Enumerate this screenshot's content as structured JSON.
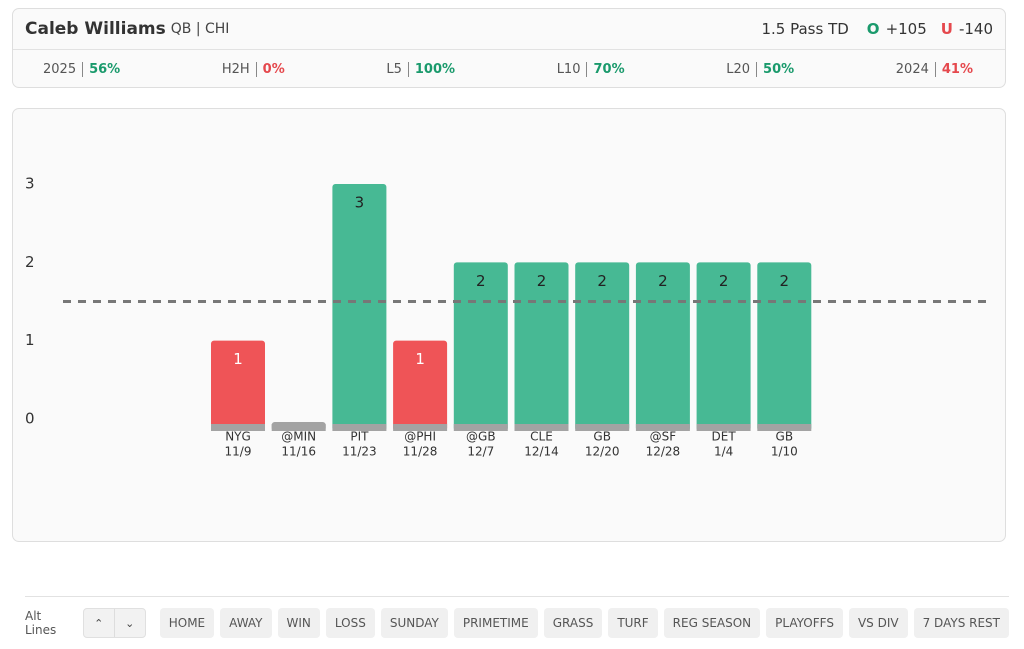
{
  "header": {
    "player": "Caleb Williams",
    "position": "QB | CHI",
    "prop": "1.5 Pass TD",
    "over_mark": "O",
    "over_odds": "+105",
    "under_mark": "U",
    "under_odds": "-140",
    "over_color": "#1a9a6c",
    "under_color": "#e5484d"
  },
  "stats": [
    {
      "label": "2025",
      "value": "56%",
      "color": "#1a9a6c"
    },
    {
      "label": "H2H",
      "value": "0%",
      "color": "#e5484d"
    },
    {
      "label": "L5",
      "value": "100%",
      "color": "#1a9a6c"
    },
    {
      "label": "L10",
      "value": "70%",
      "color": "#1a9a6c"
    },
    {
      "label": "L20",
      "value": "50%",
      "color": "#1a9a6c"
    },
    {
      "label": "2024",
      "value": "41%",
      "color": "#e5484d"
    }
  ],
  "chart_data": {
    "type": "bar",
    "categories": [
      "NYG",
      "@MIN",
      "PIT",
      "@PHI",
      "@GB",
      "CLE",
      "GB",
      "@SF",
      "DET",
      "GB"
    ],
    "dates": [
      "11/9",
      "11/16",
      "11/23",
      "11/28",
      "12/7",
      "12/14",
      "12/20",
      "12/28",
      "1/4",
      "1/10"
    ],
    "values": [
      1,
      0,
      3,
      1,
      2,
      2,
      2,
      2,
      2,
      2
    ],
    "ylim": [
      0,
      3
    ],
    "yticks": [
      0,
      1,
      2,
      3
    ],
    "line": 1.5,
    "over_color": "#47b994",
    "under_color": "#ef5457",
    "zero_color": "#a3a3a3"
  },
  "filters": {
    "label": "Alt Lines",
    "buttons": [
      "HOME",
      "AWAY",
      "WIN",
      "LOSS",
      "SUNDAY",
      "PRIMETIME",
      "GRASS",
      "TURF",
      "REG SEASON",
      "PLAYOFFS",
      "VS DIV",
      "7 DAYS REST"
    ]
  }
}
